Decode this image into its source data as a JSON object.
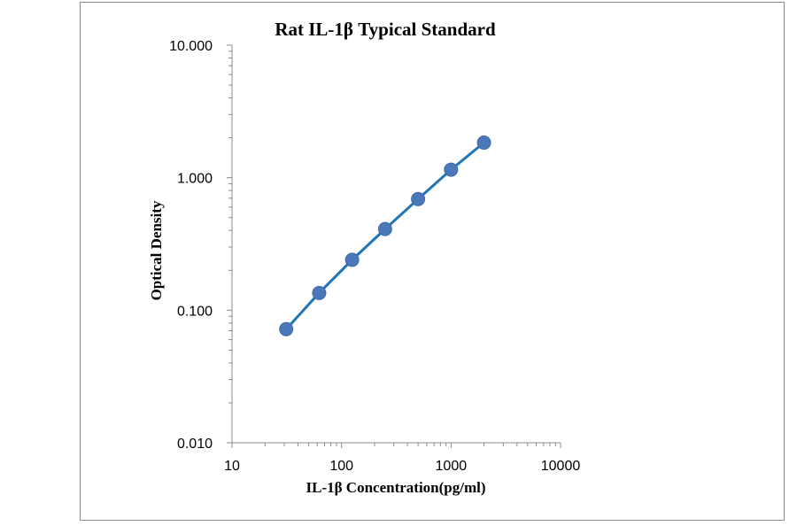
{
  "chart_data": {
    "type": "scatter",
    "title": "Rat IL-1β Typical Standard",
    "xlabel": "IL-1β Concentration(pg/ml)",
    "ylabel": "Optical Density",
    "x_scale": "log",
    "y_scale": "log",
    "xlim": [
      10,
      10000
    ],
    "ylim": [
      0.01,
      10
    ],
    "x_tick_labels": [
      "10",
      "100",
      "1000",
      "10000"
    ],
    "y_tick_labels": [
      "0.010",
      "0.100",
      "1.000",
      "10.000"
    ],
    "grid": false,
    "legend": "none",
    "series": [
      {
        "x": [
          31.25,
          62.5,
          125,
          250,
          500,
          1000,
          2000
        ],
        "y": [
          0.072,
          0.135,
          0.24,
          0.41,
          0.69,
          1.15,
          1.84
        ]
      }
    ],
    "colors": {
      "marker": "#4a78b8",
      "line": "#1f74b8"
    }
  }
}
